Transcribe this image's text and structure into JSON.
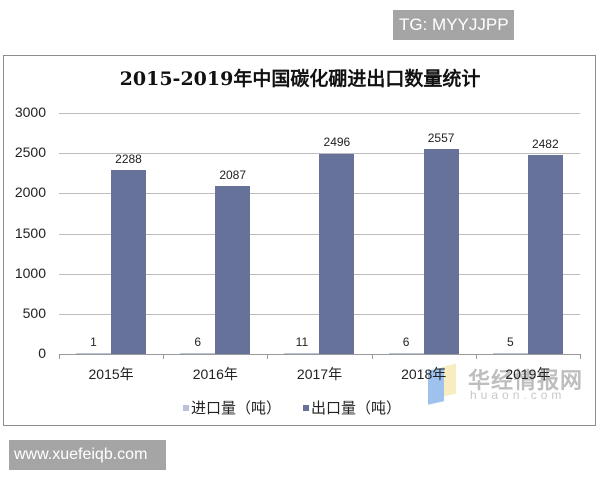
{
  "badges": {
    "top_right": "TG: MYYJJPP",
    "bottom_left": "www.xuefeiqb.com"
  },
  "watermark": {
    "cn": "华经情报网",
    "en": "huaon.com"
  },
  "colors": {
    "export_bar": "#67729a",
    "import_bar": "#b9c3d8",
    "grid": "#bdbdbd"
  },
  "chart_data": {
    "type": "bar",
    "title": "2015-2019年中国碳化硼进出口数量统计",
    "xlabel": "",
    "ylabel": "",
    "categories": [
      "2015年",
      "2016年",
      "2017年",
      "2018年",
      "2019年"
    ],
    "series": [
      {
        "name": "进口量（吨）",
        "values": [
          1,
          6,
          11,
          6,
          5
        ]
      },
      {
        "name": "出口量（吨）",
        "values": [
          2288,
          2087,
          2496,
          2557,
          2482
        ]
      }
    ],
    "ylim": [
      0,
      3000
    ],
    "yticks": [
      0,
      500,
      1000,
      1500,
      2000,
      2500,
      3000
    ],
    "ytick_labels": [
      "0",
      "500",
      "1000",
      "1500",
      "2000",
      "2500",
      "3000"
    ],
    "grid": true,
    "legend_position": "bottom",
    "data_labels": true
  }
}
